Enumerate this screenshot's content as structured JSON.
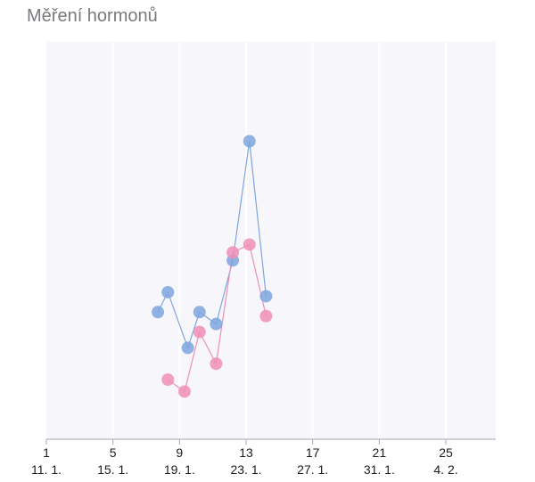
{
  "title": "Měření hormonů",
  "colors": {
    "plot_bg": "#f7f6fb",
    "grid": "#ffffff",
    "axis": "#a7a7ad",
    "series_blue": "#7ea6dd",
    "series_pink": "#ee8fb6"
  },
  "chart_data": {
    "type": "line",
    "x_ticks": [
      {
        "day": "1",
        "date": "11. 1."
      },
      {
        "day": "5",
        "date": "15. 1."
      },
      {
        "day": "9",
        "date": "19. 1."
      },
      {
        "day": "13",
        "date": "23. 1."
      },
      {
        "day": "17",
        "date": "27. 1."
      },
      {
        "day": "21",
        "date": "31. 1."
      },
      {
        "day": "25",
        "date": "4. 2."
      }
    ],
    "xlim": [
      1,
      28
    ],
    "ylim": [
      0,
      100
    ],
    "grid": true,
    "series": [
      {
        "color": "#7ea6dd",
        "points": [
          {
            "x": 7.7,
            "y": 32
          },
          {
            "x": 8.3,
            "y": 37
          },
          {
            "x": 9.5,
            "y": 23
          },
          {
            "x": 10.2,
            "y": 32
          },
          {
            "x": 11.2,
            "y": 29
          },
          {
            "x": 12.2,
            "y": 45
          },
          {
            "x": 13.2,
            "y": 75
          },
          {
            "x": 14.2,
            "y": 36
          }
        ]
      },
      {
        "color": "#ee8fb6",
        "points": [
          {
            "x": 8.3,
            "y": 15
          },
          {
            "x": 9.3,
            "y": 12
          },
          {
            "x": 10.2,
            "y": 27
          },
          {
            "x": 11.2,
            "y": 19
          },
          {
            "x": 12.2,
            "y": 47
          },
          {
            "x": 13.2,
            "y": 49
          },
          {
            "x": 14.2,
            "y": 31
          }
        ]
      }
    ]
  }
}
